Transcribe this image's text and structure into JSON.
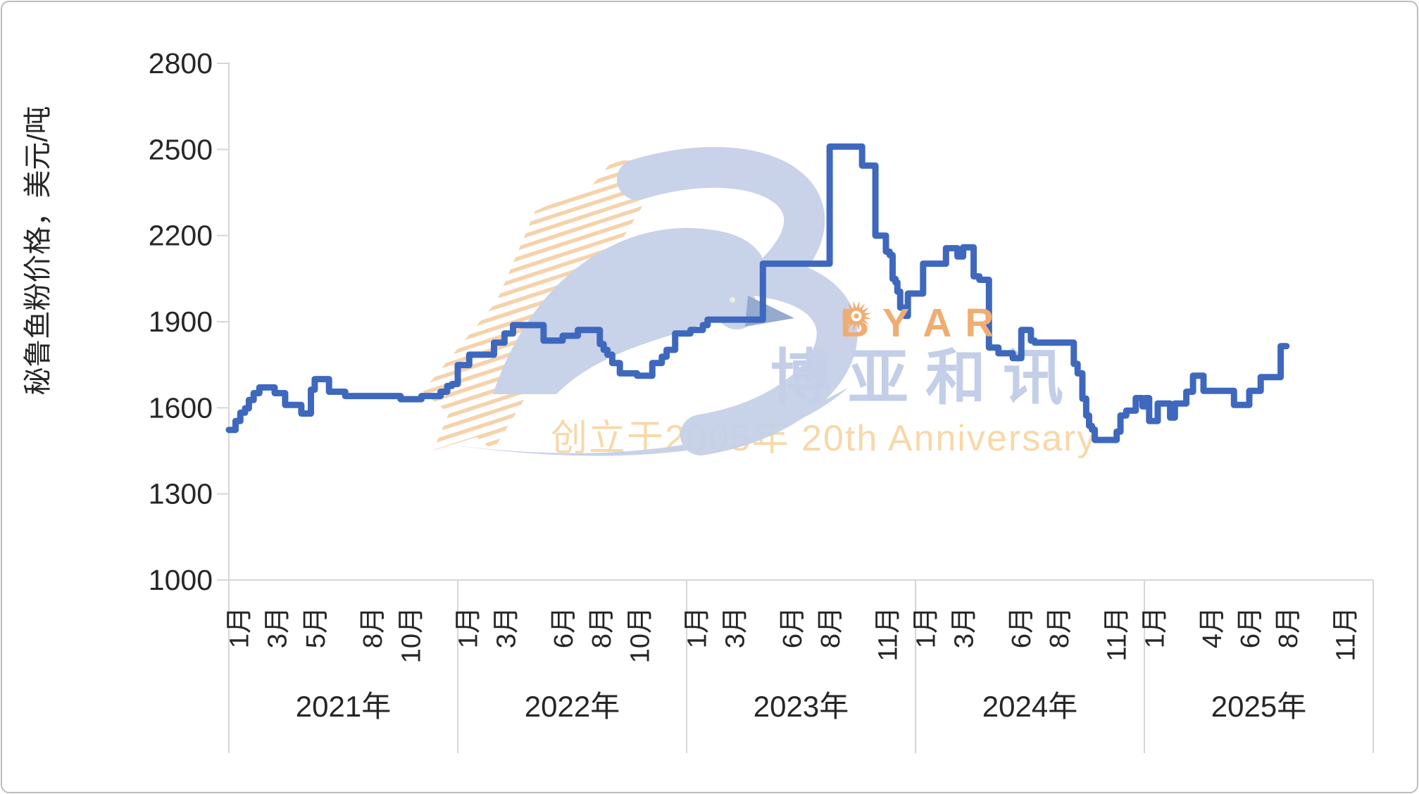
{
  "page": {
    "background": "#ffffff",
    "border_color": "#bcbcbc"
  },
  "chart_data": {
    "type": "line",
    "title": "",
    "ylabel": "秘鲁鱼粉价格，美元/吨",
    "xlabel": "",
    "ylim": [
      1000,
      2800
    ],
    "grid": "off",
    "legend": "none",
    "y_ticks": [
      1000,
      1300,
      1600,
      1900,
      2200,
      2500,
      2800
    ],
    "axis_color": "#d6d6d6",
    "text_color": "#262626",
    "x_axis_years": [
      {
        "label": "2021年",
        "month_ticks": [
          {
            "n": 1,
            "label": "1月"
          },
          {
            "n": 3,
            "label": "3月"
          },
          {
            "n": 5,
            "label": "5月"
          },
          {
            "n": 8,
            "label": "8月"
          },
          {
            "n": 10,
            "label": "10月"
          }
        ]
      },
      {
        "label": "2022年",
        "month_ticks": [
          {
            "n": 1,
            "label": "1月"
          },
          {
            "n": 3,
            "label": "3月"
          },
          {
            "n": 6,
            "label": "6月"
          },
          {
            "n": 8,
            "label": "8月"
          },
          {
            "n": 10,
            "label": "10月"
          }
        ]
      },
      {
        "label": "2023年",
        "month_ticks": [
          {
            "n": 1,
            "label": "1月"
          },
          {
            "n": 3,
            "label": "3月"
          },
          {
            "n": 6,
            "label": "6月"
          },
          {
            "n": 8,
            "label": "8月"
          },
          {
            "n": 11,
            "label": "11月"
          }
        ]
      },
      {
        "label": "2024年",
        "month_ticks": [
          {
            "n": 1,
            "label": "1月"
          },
          {
            "n": 3,
            "label": "3月"
          },
          {
            "n": 6,
            "label": "6月"
          },
          {
            "n": 8,
            "label": "8月"
          },
          {
            "n": 11,
            "label": "11月"
          }
        ]
      },
      {
        "label": "2025年",
        "month_ticks": [
          {
            "n": 1,
            "label": "1月"
          },
          {
            "n": 4,
            "label": "4月"
          },
          {
            "n": 6,
            "label": "6月"
          },
          {
            "n": 8,
            "label": "8月"
          },
          {
            "n": 11,
            "label": "11月"
          }
        ]
      }
    ],
    "x_unit": "months_since_2021_01 (fractional, 0 = Jan 2021, 60 = Dec 2025 end)",
    "series": [
      {
        "name": "秘鲁鱼粉价格",
        "color": "#3e68be",
        "interpolation": "step-after",
        "points": [
          [
            0.0,
            1523
          ],
          [
            0.35,
            1554
          ],
          [
            0.6,
            1583
          ],
          [
            0.85,
            1598
          ],
          [
            1.05,
            1627
          ],
          [
            1.3,
            1651
          ],
          [
            1.6,
            1671
          ],
          [
            2.4,
            1651
          ],
          [
            2.95,
            1610
          ],
          [
            3.8,
            1580
          ],
          [
            4.3,
            1663
          ],
          [
            4.5,
            1700
          ],
          [
            5.25,
            1656
          ],
          [
            6.1,
            1641
          ],
          [
            9.0,
            1630
          ],
          [
            10.1,
            1641
          ],
          [
            11.1,
            1656
          ],
          [
            11.45,
            1676
          ],
          [
            11.7,
            1683
          ],
          [
            12.0,
            1749
          ],
          [
            12.6,
            1785
          ],
          [
            13.9,
            1827
          ],
          [
            14.45,
            1859
          ],
          [
            14.9,
            1888
          ],
          [
            16.5,
            1834
          ],
          [
            17.5,
            1851
          ],
          [
            18.3,
            1871
          ],
          [
            19.45,
            1822
          ],
          [
            19.65,
            1802
          ],
          [
            19.85,
            1785
          ],
          [
            20.1,
            1756
          ],
          [
            20.5,
            1720
          ],
          [
            21.4,
            1712
          ],
          [
            22.2,
            1756
          ],
          [
            22.7,
            1778
          ],
          [
            22.95,
            1802
          ],
          [
            23.4,
            1859
          ],
          [
            24.2,
            1871
          ],
          [
            24.85,
            1888
          ],
          [
            25.1,
            1907
          ],
          [
            28.0,
            2102
          ],
          [
            31.5,
            2510
          ],
          [
            33.2,
            2444
          ],
          [
            33.9,
            2200
          ],
          [
            34.45,
            2144
          ],
          [
            34.65,
            2132
          ],
          [
            34.8,
            2049
          ],
          [
            34.95,
            2037
          ],
          [
            35.05,
            2005
          ],
          [
            35.2,
            1949
          ],
          [
            35.45,
            1920
          ],
          [
            35.6,
            1998
          ],
          [
            36.4,
            2102
          ],
          [
            37.6,
            2156
          ],
          [
            38.2,
            2127
          ],
          [
            38.5,
            2159
          ],
          [
            39.05,
            2058
          ],
          [
            39.35,
            2046
          ],
          [
            39.85,
            1810
          ],
          [
            40.35,
            1790
          ],
          [
            41.1,
            1773
          ],
          [
            41.55,
            1871
          ],
          [
            42.05,
            1834
          ],
          [
            42.25,
            1827
          ],
          [
            44.3,
            1753
          ],
          [
            44.5,
            1720
          ],
          [
            44.75,
            1632
          ],
          [
            44.95,
            1573
          ],
          [
            45.1,
            1537
          ],
          [
            45.25,
            1524
          ],
          [
            45.4,
            1488
          ],
          [
            46.55,
            1517
          ],
          [
            46.75,
            1573
          ],
          [
            47.05,
            1590
          ],
          [
            47.55,
            1634
          ],
          [
            47.9,
            1605
          ],
          [
            48.05,
            1634
          ],
          [
            48.25,
            1554
          ],
          [
            48.7,
            1615
          ],
          [
            49.35,
            1566
          ],
          [
            49.6,
            1615
          ],
          [
            50.2,
            1656
          ],
          [
            50.55,
            1712
          ],
          [
            51.1,
            1659
          ],
          [
            52.7,
            1610
          ],
          [
            53.5,
            1659
          ],
          [
            54.1,
            1707
          ],
          [
            55.15,
            1815
          ],
          [
            55.45,
            1815
          ]
        ]
      }
    ]
  },
  "watermark": {
    "brand_letters": [
      "B",
      "O",
      "Y",
      "A",
      "R"
    ],
    "brand_color": "#f0ad72",
    "brand_cn": "博亚和讯",
    "cn_color": "#c3cee8",
    "tagline": "创立于2005年 20th Anniversary",
    "tagline_color": "#f8d8a8",
    "logo_blue": "#c6d0e8",
    "logo_beak": "#8fa6cc",
    "hatch_orange": "#f6d0a8"
  }
}
